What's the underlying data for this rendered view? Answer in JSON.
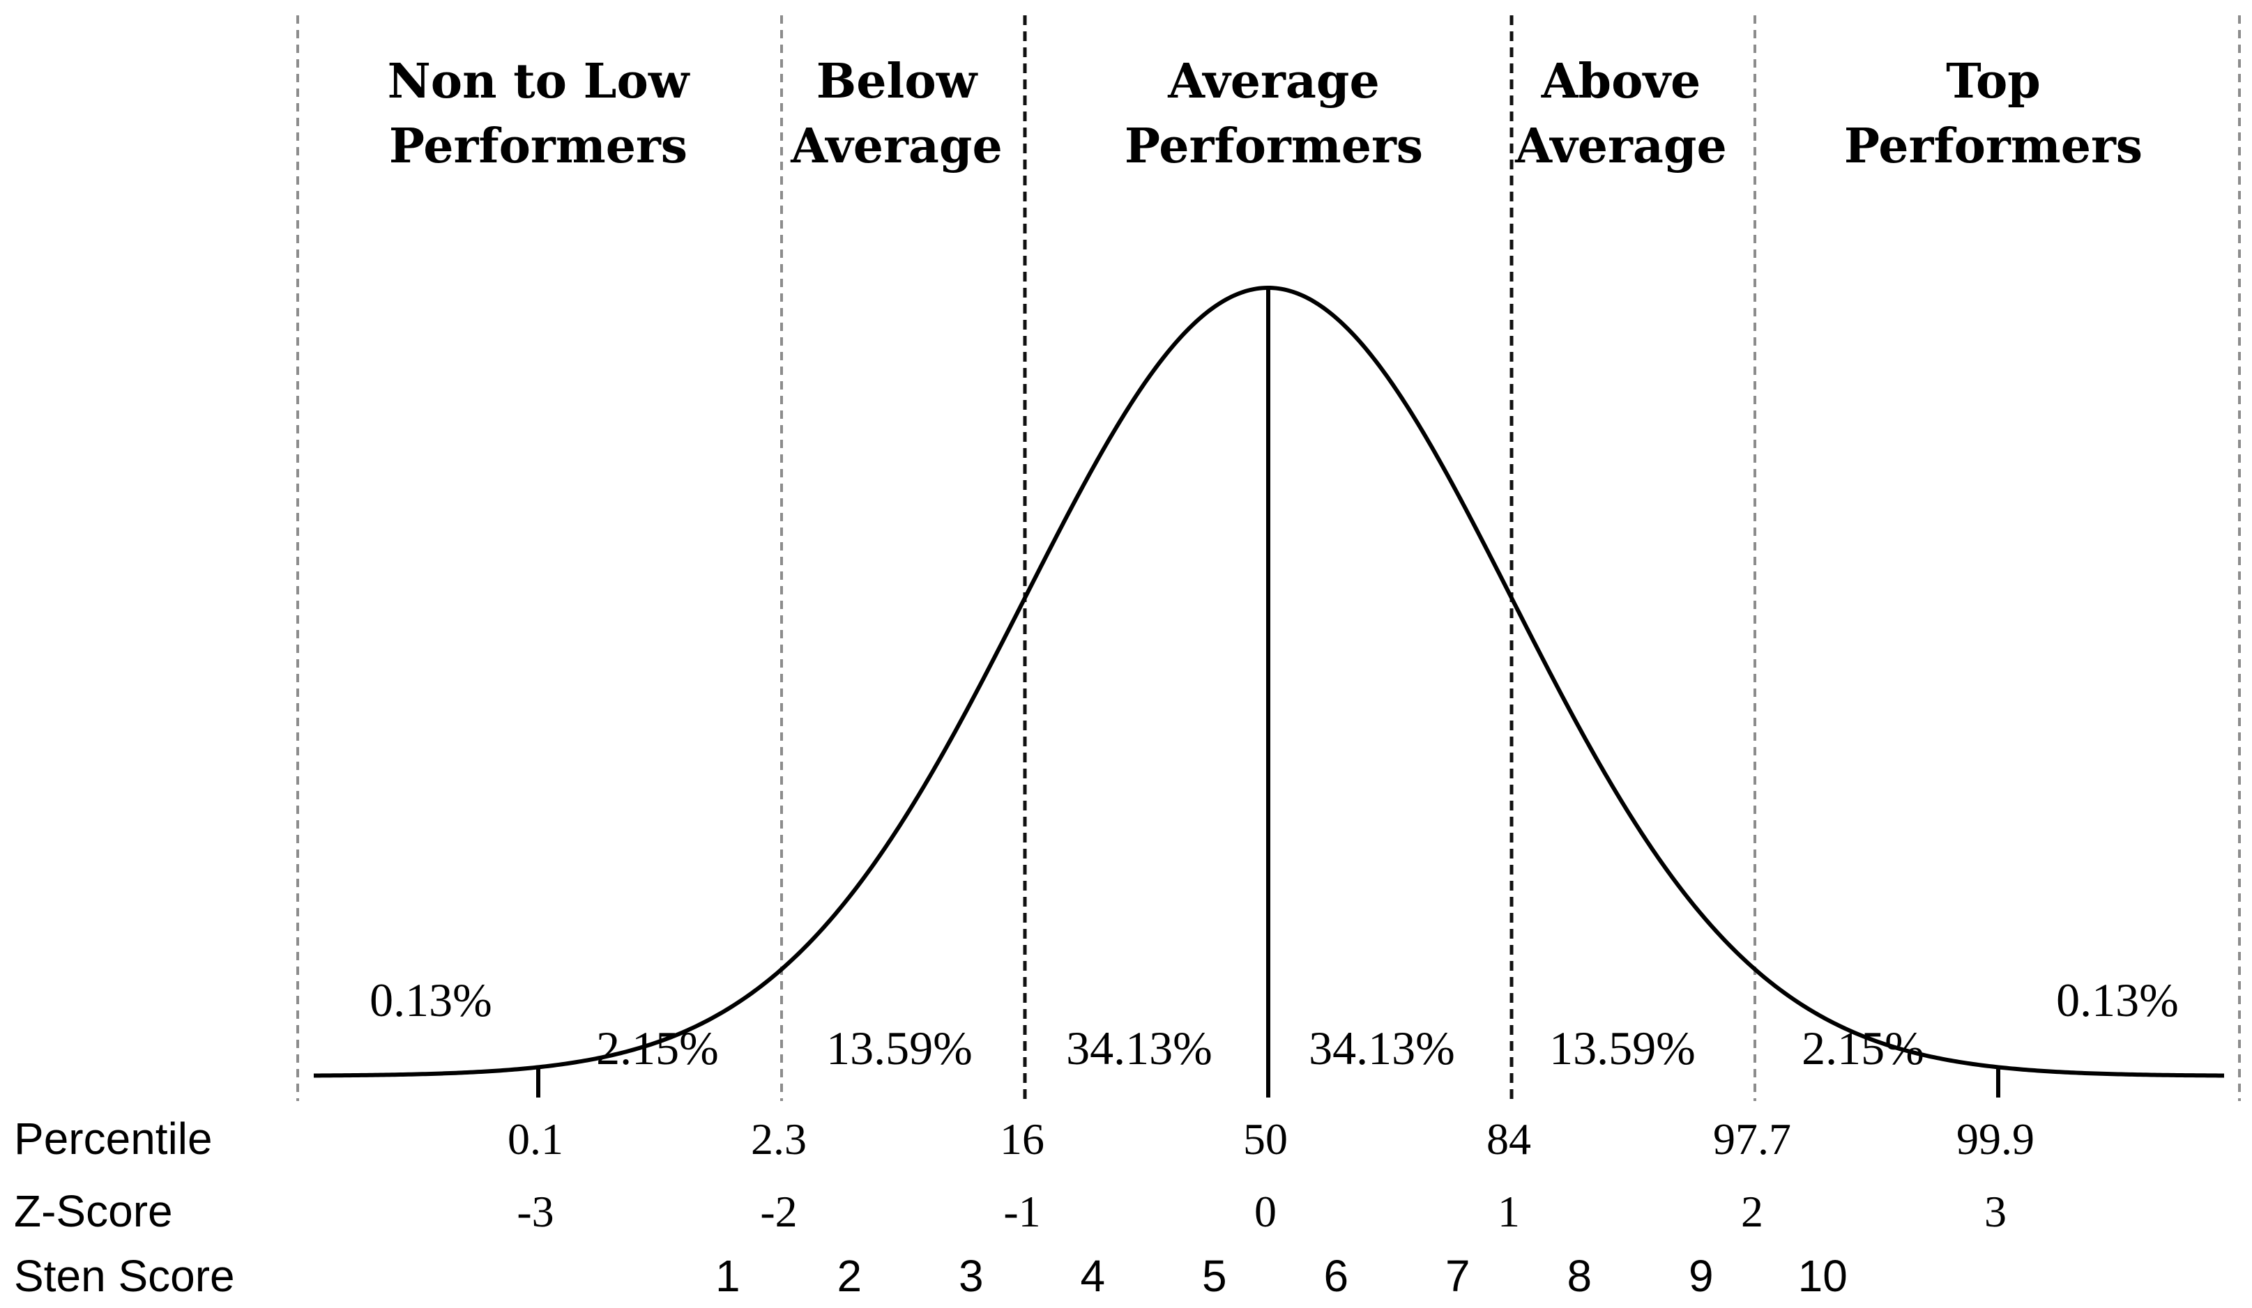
{
  "chart_data": {
    "type": "normal-distribution",
    "categories": [
      {
        "line1": "Non to Low",
        "line2": "Performers"
      },
      {
        "line1": "Below",
        "line2": "Average"
      },
      {
        "line1": "Average",
        "line2": "Performers"
      },
      {
        "line1": "Above",
        "line2": "Average"
      },
      {
        "line1": "Top",
        "line2": "Performers"
      }
    ],
    "area_percentages": [
      {
        "label": "0.13%",
        "z_center": -3.45
      },
      {
        "label": "2.15%",
        "z_center": -2.5
      },
      {
        "label": "13.59%",
        "z_center": -1.5
      },
      {
        "label": "34.13%",
        "z_center": -0.5
      },
      {
        "label": "34.13%",
        "z_center": 0.5
      },
      {
        "label": "13.59%",
        "z_center": 1.5
      },
      {
        "label": "2.15%",
        "z_center": 2.5
      },
      {
        "label": "0.13%",
        "z_center": 3.45
      }
    ],
    "percentile_label": "Percentile",
    "percentiles": [
      "0.1",
      "2.3",
      "16",
      "50",
      "84",
      "97.7",
      "99.9"
    ],
    "zscore_label": "Z-Score",
    "z_scores": [
      "-3",
      "-2",
      "-1",
      "0",
      "1",
      "2",
      "3"
    ],
    "sten_label": "Sten Score",
    "sten_scores": [
      "1",
      "2",
      "3",
      "4",
      "5",
      "6",
      "7",
      "8",
      "9",
      "10"
    ],
    "boundaries_z": [
      -4,
      -2,
      -1,
      1,
      2,
      4
    ],
    "strong_boundaries_z": [
      -1,
      1
    ],
    "mean_line_z": 0,
    "tail_ticks_z": [
      -3,
      3
    ],
    "x_range_z": [
      -4,
      4
    ]
  }
}
